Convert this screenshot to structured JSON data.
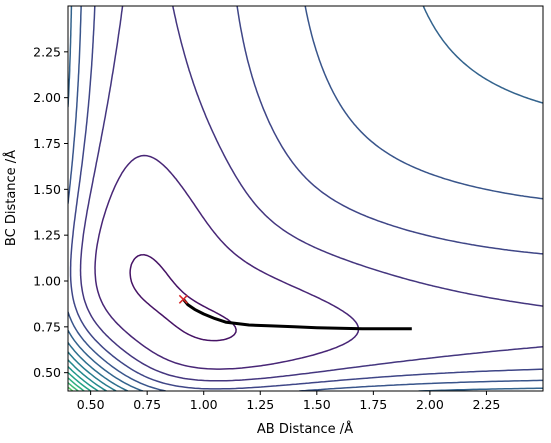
{
  "chart_data": {
    "type": "contour",
    "xlabel": "AB Distance /Å",
    "ylabel": "BC Distance /Å",
    "xlim": [
      0.4,
      2.5
    ],
    "ylim": [
      0.4,
      2.5
    ],
    "x_ticks": [
      "0.50",
      "0.75",
      "1.00",
      "1.25",
      "1.50",
      "1.75",
      "2.00",
      "2.25"
    ],
    "y_ticks": [
      "0.50",
      "0.75",
      "1.00",
      "1.25",
      "1.50",
      "1.75",
      "2.00",
      "2.25"
    ],
    "grid": false,
    "colormap": "viridis",
    "contour_levels": 20,
    "start_marker": {
      "x": 0.91,
      "y": 0.9,
      "symbol": "x",
      "color": "#d62728"
    },
    "trajectory": {
      "color": "#000000",
      "x": [
        0.91,
        0.93,
        0.96,
        1.0,
        1.05,
        1.1,
        1.2,
        1.3,
        1.4,
        1.5,
        1.6,
        1.7,
        1.8,
        1.92
      ],
      "y": [
        0.9,
        0.87,
        0.845,
        0.82,
        0.795,
        0.775,
        0.76,
        0.755,
        0.75,
        0.745,
        0.742,
        0.74,
        0.74,
        0.74
      ]
    }
  }
}
